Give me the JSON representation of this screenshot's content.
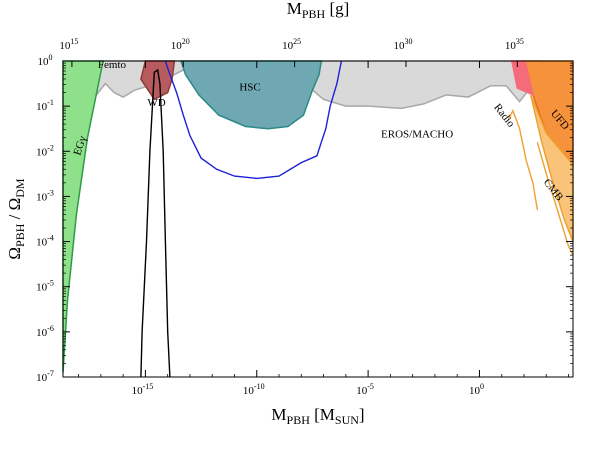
{
  "chart_data": {
    "type": "area",
    "title": "",
    "xlabel": {
      "base": "M",
      "sub1": "PBH",
      "mid": " [M",
      "sub2": "SUN",
      "end": "]"
    },
    "top_xlabel": {
      "base": "M",
      "sub": "PBH",
      "end": " [g]"
    },
    "ylabel": {
      "a": "Ω",
      "a_sub": "PBH",
      "mid": " / Ω",
      "b_sub": "DM"
    },
    "x_scale": "log",
    "y_scale": "log",
    "xlim_log10_msun": [
      -18.7,
      4.2
    ],
    "ylim_log10": [
      -7,
      0
    ],
    "bottom_ticks": [
      {
        "exp": -15,
        "base": "10",
        "sup": "-15"
      },
      {
        "exp": -10,
        "base": "10",
        "sup": "-10"
      },
      {
        "exp": -5,
        "base": "10",
        "sup": "-5"
      },
      {
        "exp": 0,
        "base": "10",
        "sup": "0"
      }
    ],
    "top_ticks": [
      {
        "exp_g": 15,
        "base": "10",
        "sup": "15"
      },
      {
        "exp_g": 20,
        "base": "10",
        "sup": "20"
      },
      {
        "exp_g": 25,
        "base": "10",
        "sup": "25"
      },
      {
        "exp_g": 30,
        "base": "10",
        "sup": "30"
      },
      {
        "exp_g": 35,
        "base": "10",
        "sup": "35"
      }
    ],
    "y_ticks": [
      {
        "exp": 0,
        "base": "10",
        "sup": "0"
      },
      {
        "exp": -1,
        "base": "10",
        "sup": "-1"
      },
      {
        "exp": -2,
        "base": "10",
        "sup": "-2"
      },
      {
        "exp": -3,
        "base": "10",
        "sup": "-3"
      },
      {
        "exp": -4,
        "base": "10",
        "sup": "-4"
      },
      {
        "exp": -5,
        "base": "10",
        "sup": "-5"
      },
      {
        "exp": -6,
        "base": "10",
        "sup": "-6"
      },
      {
        "exp": -7,
        "base": "10",
        "sup": "-7"
      }
    ],
    "regions": [
      {
        "name": "EROS/MACHO",
        "fill": "#d9d9d9",
        "stroke": "#a8a8a8",
        "points": [
          [
            -17.2,
            0.08
          ],
          [
            -17.6,
            -0.3
          ],
          [
            -17.6,
            -0.6
          ],
          [
            -17.2,
            -0.75
          ],
          [
            -16.8,
            -0.5
          ],
          [
            -16.4,
            -0.7
          ],
          [
            -16.0,
            -0.8
          ],
          [
            -15.5,
            -0.65
          ],
          [
            -14.5,
            -0.5
          ],
          [
            -13.5,
            -0.25
          ],
          [
            -12.5,
            0.0
          ],
          [
            -7.8,
            0.0
          ],
          [
            -8.0,
            -0.2
          ],
          [
            -7.6,
            -0.6
          ],
          [
            -7.0,
            -0.85
          ],
          [
            -6.0,
            -1.0
          ],
          [
            -5.0,
            -1.0
          ],
          [
            -3.5,
            -1.05
          ],
          [
            -2.5,
            -0.95
          ],
          [
            -1.5,
            -0.75
          ],
          [
            -0.5,
            -0.8
          ],
          [
            0.5,
            -0.55
          ],
          [
            1.2,
            -0.55
          ],
          [
            1.8,
            -0.9
          ],
          [
            2.2,
            -0.65
          ],
          [
            2.8,
            -0.3
          ],
          [
            2.6,
            0.08
          ]
        ]
      },
      {
        "name": "HSC",
        "fill": "#6fa7b3",
        "stroke": "#2a8a86",
        "points": [
          [
            -13.4,
            0.05
          ],
          [
            -13.2,
            -0.3
          ],
          [
            -12.6,
            -0.75
          ],
          [
            -11.7,
            -1.2
          ],
          [
            -10.5,
            -1.45
          ],
          [
            -9.5,
            -1.5
          ],
          [
            -8.6,
            -1.45
          ],
          [
            -7.9,
            -1.2
          ],
          [
            -7.5,
            -0.65
          ],
          [
            -7.2,
            -0.3
          ],
          [
            -7.1,
            0.05
          ]
        ]
      },
      {
        "name": "Femto",
        "fill": "#b85b5e",
        "stroke": "#8c3a3d",
        "points": [
          [
            -15.0,
            0.05
          ],
          [
            -15.2,
            -0.4
          ],
          [
            -14.6,
            -0.85
          ],
          [
            -14.0,
            -0.7
          ],
          [
            -13.8,
            -0.4
          ],
          [
            -13.7,
            0.05
          ]
        ]
      },
      {
        "name": "EGγ",
        "fill": "#8ee08a",
        "stroke": "#2e9c47",
        "points": [
          [
            -18.7,
            -6.9
          ],
          [
            -18.7,
            0.0
          ],
          [
            -16.9,
            0.0
          ],
          [
            -17.6,
            -1.7
          ],
          [
            -18.1,
            -3.4
          ],
          [
            -18.5,
            -5.3
          ]
        ]
      },
      {
        "name": "UFD",
        "fill": "#f7923c",
        "stroke": "#e26a1b",
        "points": [
          [
            2.05,
            0.05
          ],
          [
            2.4,
            -0.75
          ],
          [
            3.0,
            -1.6
          ],
          [
            4.2,
            -2.3
          ],
          [
            4.2,
            0.05
          ]
        ]
      },
      {
        "name": "Radio",
        "fill": "#f66b7a",
        "stroke": "#f66b7a",
        "points": [
          [
            1.45,
            0.05
          ],
          [
            1.7,
            -0.6
          ],
          [
            2.4,
            -0.75
          ],
          [
            2.05,
            0.05
          ]
        ]
      },
      {
        "name": "CMB",
        "fill": "#f9c47a",
        "stroke": "#f0a030",
        "points": [
          [
            2.3,
            -0.75
          ],
          [
            2.8,
            -1.8
          ],
          [
            3.3,
            -2.7
          ],
          [
            3.8,
            -3.5
          ],
          [
            4.2,
            -4.0
          ],
          [
            4.2,
            -2.3
          ],
          [
            3.0,
            -1.6
          ]
        ]
      }
    ],
    "curves": [
      {
        "name": "blue-bound",
        "color": "#1f1fd8",
        "points": [
          [
            -14.1,
            0.05
          ],
          [
            -13.9,
            -0.3
          ],
          [
            -13.6,
            -0.7
          ],
          [
            -13.3,
            -1.2
          ],
          [
            -13.0,
            -1.65
          ],
          [
            -12.5,
            -2.15
          ],
          [
            -11.8,
            -2.4
          ],
          [
            -11.0,
            -2.55
          ],
          [
            -10.0,
            -2.6
          ],
          [
            -9.0,
            -2.55
          ],
          [
            -8.0,
            -2.25
          ],
          [
            -7.3,
            -2.1
          ],
          [
            -7.1,
            -1.8
          ],
          [
            -6.9,
            -1.5
          ],
          [
            -6.7,
            -1.0
          ],
          [
            -6.4,
            -0.5
          ],
          [
            -6.2,
            0.05
          ]
        ]
      },
      {
        "name": "WD-peak",
        "color": "#000000",
        "points": [
          [
            -15.2,
            -7.05
          ],
          [
            -15.15,
            -6.0
          ],
          [
            -14.95,
            -4.0
          ],
          [
            -14.8,
            -2.0
          ],
          [
            -14.6,
            -0.25
          ],
          [
            -14.45,
            -0.2
          ],
          [
            -14.35,
            -0.5
          ],
          [
            -14.2,
            -2.0
          ],
          [
            -14.1,
            -4.0
          ],
          [
            -14.0,
            -6.0
          ],
          [
            -13.9,
            -7.05
          ]
        ]
      },
      {
        "name": "radio-curve",
        "color": "#f0a030",
        "points": [
          [
            1.3,
            -1.3
          ],
          [
            1.5,
            -1.1
          ],
          [
            1.8,
            -1.5
          ],
          [
            2.1,
            -2.2
          ],
          [
            2.4,
            -2.7
          ],
          [
            2.6,
            -3.3
          ]
        ]
      },
      {
        "name": "cmb-curve",
        "color": "#f0a030",
        "points": [
          [
            2.6,
            -1.8
          ],
          [
            3.0,
            -2.5
          ],
          [
            3.5,
            -3.3
          ],
          [
            4.0,
            -4.1
          ],
          [
            4.2,
            -4.3
          ]
        ]
      }
    ],
    "annotations": [
      {
        "text": "Femto",
        "at": [
          -16.5,
          -0.15
        ],
        "rotate": 0
      },
      {
        "text": "HSC",
        "at": [
          -10.3,
          -0.65
        ],
        "rotate": 0
      },
      {
        "text": "EROS/MACHO",
        "at": [
          -2.8,
          -1.7
        ],
        "rotate": 0
      },
      {
        "text": "WD",
        "at": [
          -14.5,
          -1.0
        ],
        "rotate": 0
      },
      {
        "text": "EGγ",
        "at": [
          -17.8,
          -1.9
        ],
        "rotate": -72
      },
      {
        "text": "Radio",
        "at": [
          1.0,
          -1.25
        ],
        "rotate": 52
      },
      {
        "text": "UFD",
        "at": [
          3.5,
          -1.35
        ],
        "rotate": 50
      },
      {
        "text": "CMB",
        "at": [
          3.2,
          -2.9
        ],
        "rotate": 52
      }
    ]
  }
}
